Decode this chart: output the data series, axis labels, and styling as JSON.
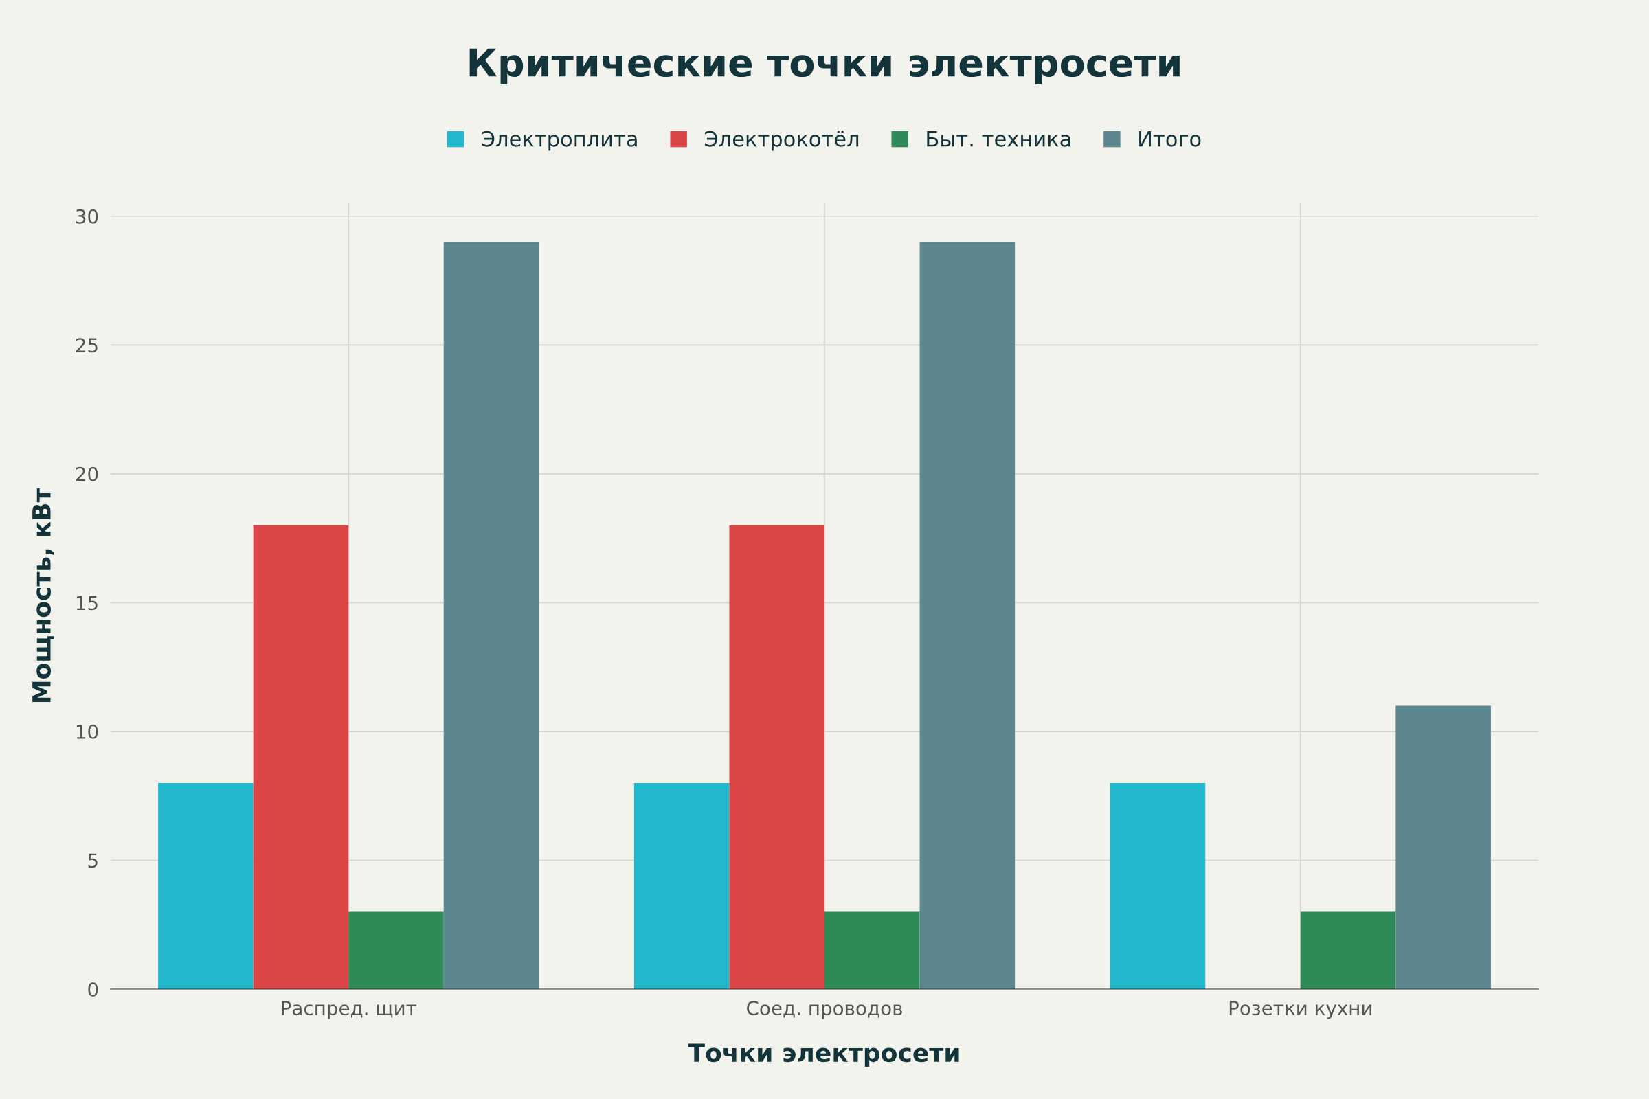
{
  "chart_data": {
    "type": "bar",
    "title": "Критические точки электросети",
    "xlabel": "Точки электросети",
    "ylabel": "Мощность, кВт",
    "categories": [
      "Распред. щит",
      "Соед. проводов",
      "Розетки кухни"
    ],
    "series": [
      {
        "name": "Электроплита",
        "color": "#21b8cd",
        "values": [
          8,
          8,
          8
        ]
      },
      {
        "name": "Электрокотёл",
        "color": "#db4546",
        "values": [
          18,
          18,
          0
        ]
      },
      {
        "name": "Быт. техника",
        "color": "#2e8b57",
        "values": [
          3,
          3,
          3
        ]
      },
      {
        "name": "Итого",
        "color": "#5d878f",
        "values": [
          29,
          29,
          11
        ]
      }
    ],
    "ylim": [
      0,
      30.5
    ],
    "yticks": [
      0,
      5,
      10,
      15,
      20,
      25,
      30
    ],
    "grid": true,
    "legend": "top"
  }
}
